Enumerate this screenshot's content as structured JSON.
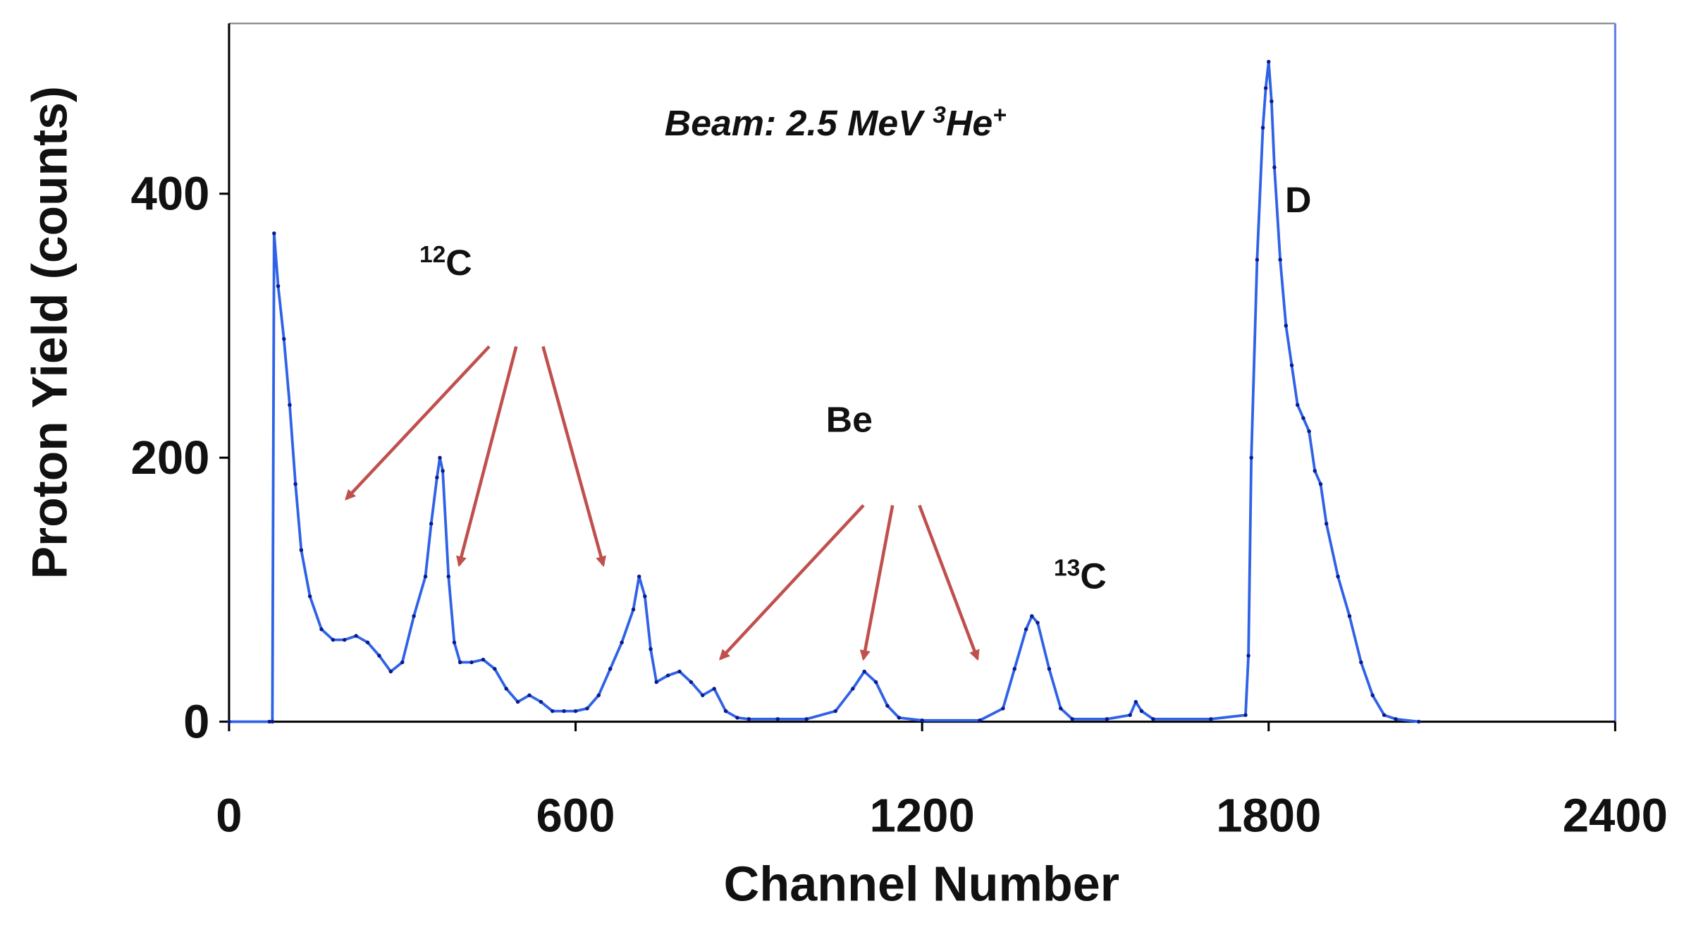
{
  "chart_data": {
    "type": "line",
    "xlabel": "Channel Number",
    "ylabel": "Proton Yield (counts)",
    "xlim": [
      0,
      2400
    ],
    "ylim": [
      0,
      529
    ],
    "xticks": [
      0,
      600,
      1200,
      1800,
      2400
    ],
    "yticks": [
      0,
      200,
      400
    ],
    "annotations": [
      {
        "parts": [
          {
            "text": "Beam:  2.5 MeV "
          },
          {
            "text": "3",
            "sup": true
          },
          {
            "text": "He"
          },
          {
            "text": "+",
            "sup": true
          }
        ],
        "italic": true
      },
      {
        "parts": [
          {
            "text": "12",
            "sup": true
          },
          {
            "text": "C"
          }
        ]
      },
      {
        "parts": [
          {
            "text": "Be"
          }
        ]
      },
      {
        "parts": [
          {
            "text": "13",
            "sup": true
          },
          {
            "text": "C"
          }
        ]
      },
      {
        "parts": [
          {
            "text": "D"
          }
        ]
      }
    ],
    "series": [
      {
        "color": "#2f62e6",
        "marker_color": "#0c1a8a",
        "x": [
          0,
          70,
          75,
          78,
          85,
          95,
          105,
          115,
          125,
          140,
          160,
          180,
          200,
          220,
          240,
          260,
          280,
          300,
          320,
          340,
          350,
          360,
          365,
          370,
          380,
          390,
          400,
          420,
          440,
          460,
          480,
          500,
          520,
          540,
          560,
          580,
          600,
          620,
          640,
          660,
          680,
          700,
          710,
          720,
          730,
          740,
          760,
          780,
          800,
          820,
          840,
          860,
          880,
          900,
          950,
          1000,
          1050,
          1080,
          1100,
          1120,
          1140,
          1160,
          1200,
          1300,
          1340,
          1360,
          1380,
          1390,
          1400,
          1420,
          1440,
          1460,
          1520,
          1560,
          1570,
          1580,
          1600,
          1700,
          1760,
          1765,
          1770,
          1780,
          1790,
          1795,
          1800,
          1805,
          1810,
          1820,
          1830,
          1840,
          1850,
          1860,
          1870,
          1880,
          1890,
          1900,
          1920,
          1940,
          1960,
          1980,
          2000,
          2020,
          2060
        ],
        "values": [
          0,
          0,
          0,
          370,
          330,
          290,
          240,
          180,
          130,
          95,
          70,
          62,
          62,
          65,
          60,
          50,
          38,
          45,
          80,
          110,
          150,
          185,
          200,
          190,
          110,
          60,
          45,
          45,
          47,
          40,
          25,
          15,
          20,
          15,
          8,
          8,
          8,
          10,
          20,
          40,
          60,
          85,
          110,
          95,
          55,
          30,
          35,
          38,
          30,
          20,
          25,
          8,
          3,
          2,
          2,
          2,
          8,
          25,
          38,
          30,
          12,
          3,
          1,
          1,
          10,
          40,
          70,
          80,
          75,
          40,
          10,
          2,
          2,
          5,
          15,
          8,
          2,
          2,
          5,
          50,
          200,
          350,
          450,
          480,
          500,
          470,
          420,
          350,
          300,
          270,
          240,
          230,
          220,
          190,
          180,
          150,
          110,
          80,
          45,
          20,
          5,
          2,
          0
        ]
      }
    ]
  }
}
